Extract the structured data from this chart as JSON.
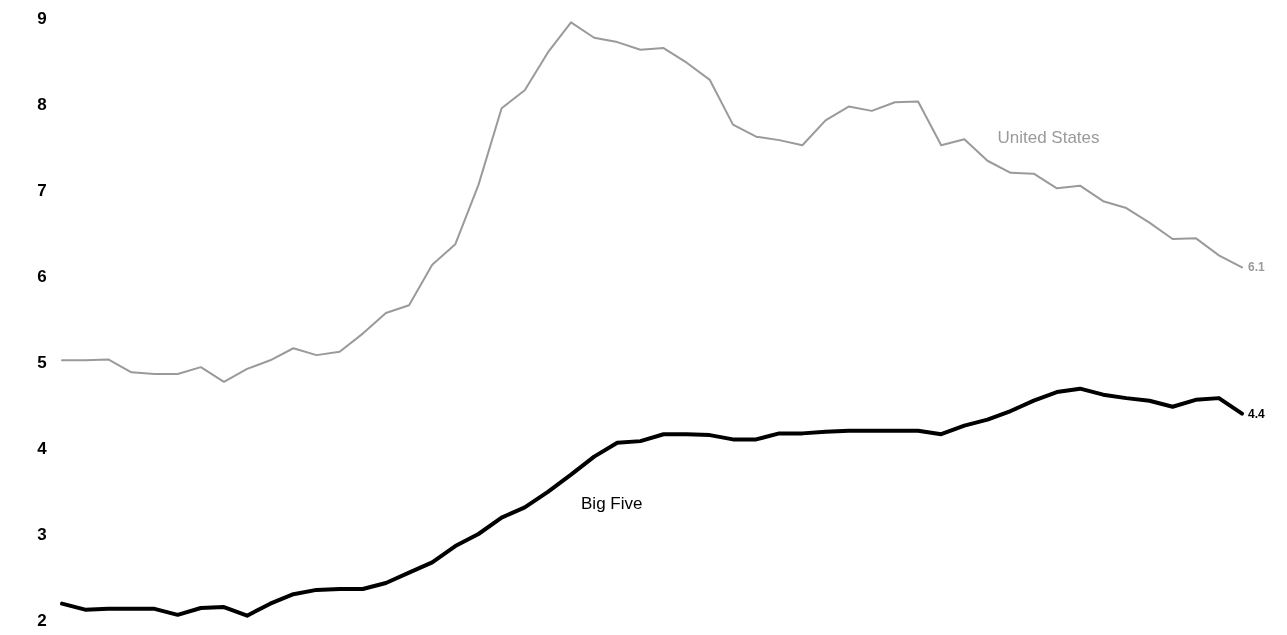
{
  "chart_data": {
    "type": "line",
    "categories": [
      null,
      null,
      null,
      null,
      null,
      null,
      null,
      null,
      null,
      null,
      null,
      null,
      null,
      null,
      null,
      null,
      null,
      null,
      null,
      null,
      null,
      null,
      null,
      null,
      null,
      null,
      null,
      null,
      null,
      null,
      null,
      null,
      null,
      null,
      null,
      null,
      null,
      null,
      null,
      null,
      null,
      null,
      null,
      null,
      null,
      null,
      null,
      null,
      null,
      null,
      null,
      null
    ],
    "series": [
      {
        "name": "United States",
        "color": "#9a9a9a",
        "values": [
          5.02,
          5.02,
          5.03,
          4.88,
          4.86,
          4.86,
          4.94,
          4.77,
          4.92,
          5.02,
          5.16,
          5.08,
          5.12,
          5.33,
          5.57,
          5.66,
          6.13,
          6.37,
          7.06,
          7.95,
          8.16,
          8.6,
          8.95,
          8.77,
          8.72,
          8.63,
          8.65,
          8.48,
          8.28,
          7.76,
          7.62,
          7.58,
          7.52,
          7.81,
          7.97,
          7.92,
          8.02,
          8.03,
          7.52,
          7.59,
          7.34,
          7.2,
          7.19,
          7.02,
          7.05,
          6.87,
          6.79,
          6.62,
          6.43,
          6.44,
          6.24,
          6.1
        ],
        "value_labels": [
          null,
          null,
          null,
          null,
          null,
          null,
          null,
          null,
          null,
          null,
          null,
          null,
          null,
          null,
          null,
          null,
          null,
          null,
          null,
          null,
          null,
          null,
          null,
          null,
          null,
          null,
          null,
          null,
          null,
          null,
          null,
          null,
          null,
          null,
          null,
          null,
          null,
          null,
          null,
          null,
          null,
          null,
          null,
          null,
          null,
          null,
          null,
          null,
          null,
          null,
          null,
          "6.1"
        ]
      },
      {
        "name": "Big Five",
        "color": "#000000",
        "values": [
          2.19,
          2.12,
          2.13,
          2.13,
          2.13,
          2.06,
          2.14,
          2.15,
          2.05,
          2.19,
          2.3,
          2.35,
          2.36,
          2.36,
          2.43,
          2.55,
          2.67,
          2.86,
          3.0,
          3.19,
          3.31,
          3.49,
          3.69,
          3.9,
          4.06,
          4.08,
          4.16,
          4.16,
          4.15,
          4.1,
          4.1,
          4.17,
          4.17,
          4.19,
          4.2,
          4.2,
          4.2,
          4.2,
          4.16,
          4.26,
          4.33,
          4.43,
          4.55,
          4.65,
          4.69,
          4.62,
          4.58,
          4.55,
          4.48,
          4.56,
          4.58,
          4.4
        ],
        "value_labels": [
          null,
          null,
          null,
          null,
          null,
          null,
          null,
          null,
          null,
          null,
          null,
          null,
          null,
          null,
          null,
          null,
          null,
          null,
          null,
          null,
          null,
          null,
          null,
          null,
          null,
          null,
          null,
          null,
          null,
          null,
          null,
          null,
          null,
          null,
          null,
          null,
          null,
          null,
          null,
          null,
          null,
          null,
          null,
          null,
          null,
          null,
          null,
          null,
          null,
          null,
          null,
          "4.4"
        ]
      }
    ],
    "ylim": [
      2,
      9
    ],
    "yticks": [
      2,
      3,
      4,
      5,
      6,
      7,
      8,
      9
    ],
    "tick_labels": "y",
    "grid": false,
    "marker": "none",
    "line_style": "solid"
  }
}
